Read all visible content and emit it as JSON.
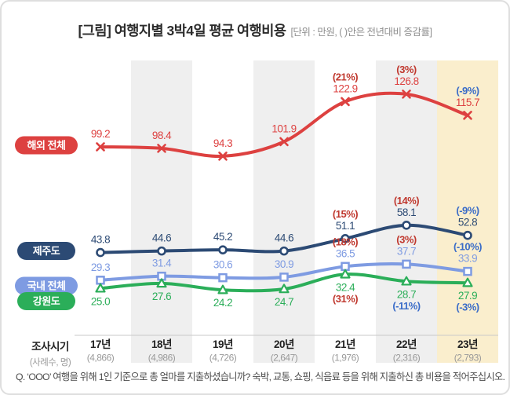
{
  "card": {
    "border_color": "#dedede",
    "background": "#ffffff"
  },
  "axis": {
    "header": "조사시기",
    "subheader": "(사례수, 명)"
  },
  "footer": {
    "question": "Q. ‘OOO’ 여행을 위해 1인 기준으로 총 얼마를 지출하셨습니까? 숙박, 교통, 쇼핑, 식음료 등을 위해 지출하신 총 비용을 적어주십시오."
  },
  "chart_data": {
    "type": "line",
    "title": "[그림] 여행지별 3박4일 평균 여행비용",
    "unit_note": "[단위 : 만원, ( )안은 전년대비 증감률]",
    "categories": [
      "17년",
      "18년",
      "19년",
      "20년",
      "21년",
      "22년",
      "23년"
    ],
    "samples": [
      "(4,866)",
      "(4,986)",
      "(4,726)",
      "(2,647)",
      "(1,976)",
      "(2,316)",
      "(2,793)"
    ],
    "ylabel": "만원",
    "series": [
      {
        "key": "overseas-total",
        "name": "해외 전체",
        "color": "#dd4140",
        "marker": "x",
        "labels": "above",
        "values": [
          99.2,
          98.4,
          94.3,
          101.9,
          122.9,
          126.8,
          115.7
        ],
        "pct": [
          null,
          null,
          null,
          null,
          "(21%)",
          "(3%)",
          "(-9%)"
        ]
      },
      {
        "key": "jeju",
        "name": "제주도",
        "color": "#2c4a74",
        "marker": "circle",
        "labels": "above",
        "values": [
          43.8,
          44.6,
          45.2,
          44.6,
          51.1,
          58.1,
          52.8
        ],
        "pct": [
          null,
          null,
          null,
          null,
          "(15%)",
          "(14%)",
          "(-9%)"
        ]
      },
      {
        "key": "domestic-total",
        "name": "국내 전체",
        "color": "#7e9be2",
        "marker": "square",
        "labels": "above",
        "values": [
          29.3,
          31.4,
          30.6,
          30.9,
          36.5,
          37.7,
          33.9
        ],
        "pct": [
          null,
          null,
          null,
          null,
          "(18%)",
          "(3%)",
          "(-10%)"
        ]
      },
      {
        "key": "gangwon",
        "name": "강원도",
        "color": "#2bae59",
        "marker": "triangle",
        "labels": "below",
        "values": [
          25.0,
          27.6,
          24.2,
          24.7,
          32.4,
          28.7,
          27.9
        ],
        "pct": [
          null,
          null,
          null,
          null,
          "(31%)",
          "(-11%)",
          "(-3%)"
        ]
      }
    ],
    "highlight": {
      "gray_columns": [
        "18년",
        "20년",
        "22년"
      ],
      "yellow_column": "23년",
      "gray_color": "#efefef",
      "yellow_color": "#faeecd"
    },
    "pct_colors": {
      "positive": "#c0392f",
      "negative": "#3a6cc8"
    },
    "legend_position": "left",
    "grid": false
  }
}
